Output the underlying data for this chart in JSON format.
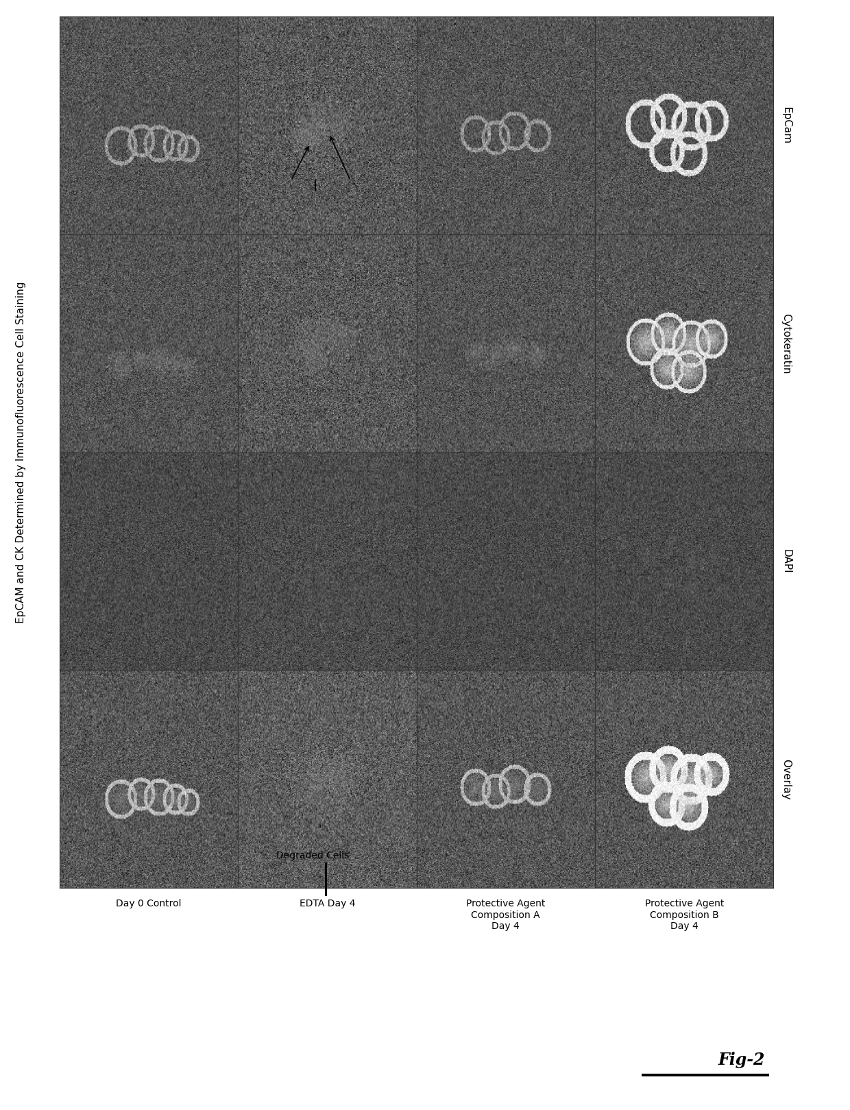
{
  "title": "EpCAM and CK Determined by Immunofluorescence Cell Staining",
  "row_labels": [
    "EpCam",
    "Cytokeratin",
    "DAPI",
    "Overlay"
  ],
  "col_labels": [
    "Day 0 Control",
    "Degraded Cells\nEDTA Day 4",
    "Protective Agent\nComposition A\nDay 4",
    "Protective Agent\nComposition B\nDay 4"
  ],
  "fig_label": "Fig-2",
  "figure_bg": "#ffffff",
  "grid_rows": 4,
  "grid_cols": 4,
  "img_bg_base": 118,
  "img_bg_noise": 18
}
